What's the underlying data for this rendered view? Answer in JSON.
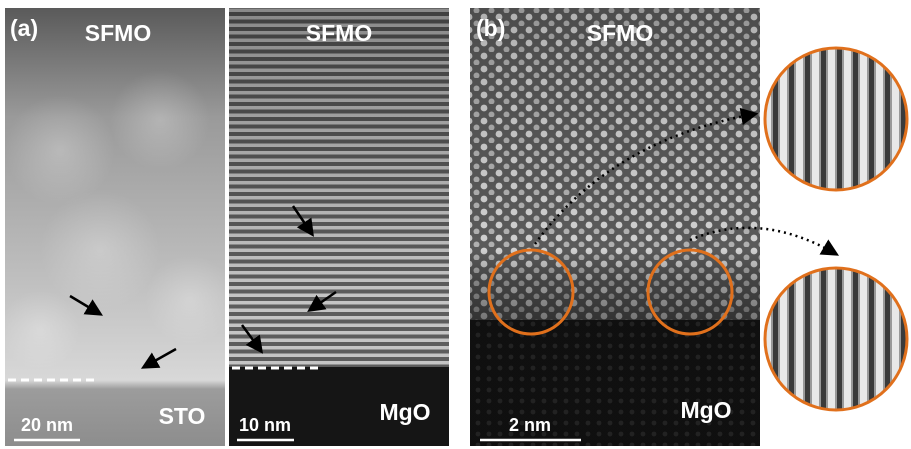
{
  "panels": [
    {
      "label": "(a)",
      "top_material": "SFMO",
      "bottom_material": "STO",
      "scale_bar": "20 nm"
    },
    {
      "top_material": "SFMO",
      "bottom_material": "MgO",
      "scale_bar": "10 nm"
    },
    {
      "label": "(b)",
      "top_material": "SFMO",
      "bottom_material": "MgO",
      "scale_bar": "2 nm"
    }
  ]
}
